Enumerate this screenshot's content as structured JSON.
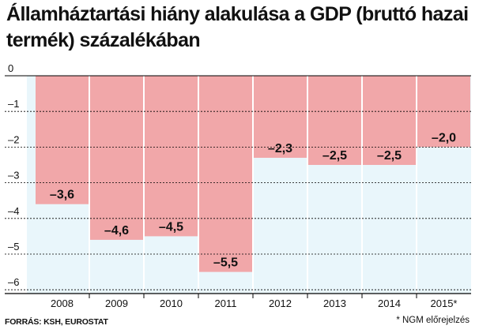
{
  "chart_data": {
    "type": "bar",
    "title": "Államháztartási hiány alakulása a GDP (bruttó hazai termék) százalékában",
    "categories": [
      "2008",
      "2009",
      "2010",
      "2011",
      "2012",
      "2013",
      "2014",
      "2015*"
    ],
    "values": [
      -3.6,
      -4.6,
      -4.5,
      -5.5,
      -2.3,
      -2.5,
      -2.5,
      -2.0
    ],
    "value_labels": [
      "–3,6",
      "–4,6",
      "–4,5",
      "–5,5",
      "–2,3",
      "–2,5",
      "–2,5",
      "–2,0"
    ],
    "ylim": [
      -6.3,
      0
    ],
    "yticks": [
      0,
      -1,
      -2,
      -3,
      -4,
      -5,
      -6
    ],
    "ytick_labels": [
      "0",
      "–1",
      "–2",
      "–3",
      "–4",
      "–5",
      "–6"
    ],
    "grid": true,
    "colors": {
      "bar": "#f1a7a9",
      "background": "#e9f6fb",
      "axis": "#000000"
    },
    "source": "FORRÁS: KSH, EUROSTAT",
    "footnote": "* NGM előrejelzés"
  }
}
